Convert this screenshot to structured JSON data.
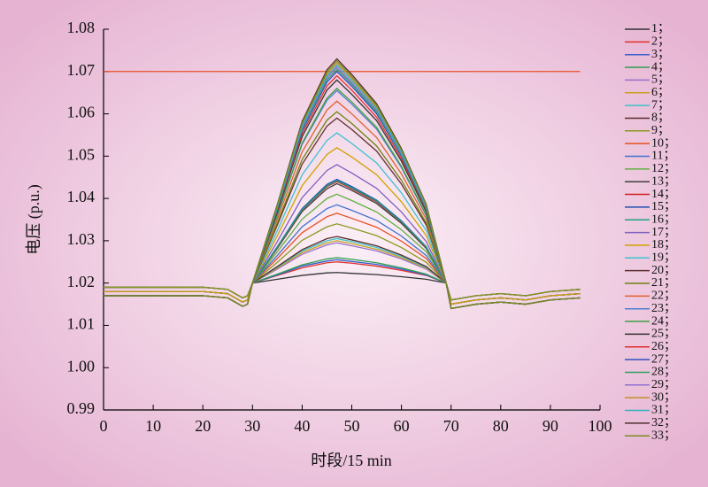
{
  "chart_data": {
    "type": "line",
    "xlabel": "时段/15 min",
    "ylabel": "电压 (p.u.)",
    "xlim": [
      0,
      100
    ],
    "xticks": [
      0,
      10,
      20,
      30,
      40,
      50,
      60,
      70,
      80,
      90,
      100
    ],
    "ylim": [
      0.99,
      1.08
    ],
    "yticks": [
      0.99,
      {
        "value": 1,
        "label": "1.00"
      },
      1.01,
      1.02,
      1.03,
      1.04,
      1.05,
      1.06,
      1.07,
      1.08
    ],
    "reference_line": {
      "y": 1.07,
      "x": [
        0,
        96
      ],
      "color": "#e8502a"
    },
    "x": [
      0,
      10,
      20,
      25,
      28,
      29,
      30,
      35,
      40,
      45,
      47,
      50,
      55,
      60,
      65,
      69,
      70,
      75,
      80,
      85,
      90,
      96
    ],
    "series": [
      {
        "name": "1；",
        "color": "#333333",
        "values": [
          1.019,
          1.019,
          1.019,
          1.0185,
          1.0165,
          1.017,
          1.02,
          1.0209,
          1.0218,
          1.0224,
          1.0225,
          1.0223,
          1.022,
          1.0215,
          1.0209,
          1.02,
          1.016,
          1.017,
          1.0175,
          1.017,
          1.018,
          1.0185
        ]
      },
      {
        "name": "2；",
        "color": "#e0302a",
        "values": [
          1.019,
          1.019,
          1.019,
          1.0185,
          1.0165,
          1.017,
          1.02,
          1.0218,
          1.0236,
          1.0248,
          1.025,
          1.0247,
          1.024,
          1.023,
          1.0218,
          1.02,
          1.016,
          1.017,
          1.0175,
          1.017,
          1.018,
          1.0185
        ]
      },
      {
        "name": "3；",
        "color": "#3a5fcd",
        "values": [
          1.019,
          1.019,
          1.019,
          1.0185,
          1.0165,
          1.017,
          1.02,
          1.0219,
          1.024,
          1.0252,
          1.0255,
          1.0251,
          1.0244,
          1.0233,
          1.0219,
          1.02,
          1.016,
          1.017,
          1.0175,
          1.017,
          1.018,
          1.0185
        ]
      },
      {
        "name": "4；",
        "color": "#2e9e4f",
        "values": [
          1.019,
          1.019,
          1.019,
          1.0185,
          1.0165,
          1.017,
          1.02,
          1.0221,
          1.0243,
          1.0257,
          1.026,
          1.0256,
          1.0248,
          1.0236,
          1.0221,
          1.02,
          1.016,
          1.017,
          1.0175,
          1.017,
          1.018,
          1.0185
        ]
      },
      {
        "name": "5；",
        "color": "#9a6fd0",
        "values": [
          1.019,
          1.019,
          1.019,
          1.0185,
          1.0165,
          1.017,
          1.02,
          1.0233,
          1.0268,
          1.029,
          1.0295,
          1.0288,
          1.0276,
          1.0257,
          1.0233,
          1.02,
          1.016,
          1.017,
          1.0175,
          1.017,
          1.018,
          1.0185
        ]
      },
      {
        "name": "6；",
        "color": "#c8a020",
        "values": [
          1.019,
          1.019,
          1.019,
          1.0185,
          1.0165,
          1.017,
          1.02,
          1.0235,
          1.0272,
          1.0295,
          1.03,
          1.0293,
          1.028,
          1.026,
          1.0235,
          1.02,
          1.016,
          1.017,
          1.0175,
          1.017,
          1.018,
          1.0185
        ]
      },
      {
        "name": "7；",
        "color": "#3cc0c8",
        "values": [
          1.019,
          1.019,
          1.019,
          1.0185,
          1.0165,
          1.017,
          1.02,
          1.0237,
          1.0276,
          1.03,
          1.0305,
          1.0298,
          1.0284,
          1.0263,
          1.0237,
          1.02,
          1.016,
          1.017,
          1.0175,
          1.017,
          1.018,
          1.0185
        ]
      },
      {
        "name": "8；",
        "color": "#5a2a2a",
        "values": [
          1.019,
          1.019,
          1.019,
          1.0185,
          1.0165,
          1.017,
          1.02,
          1.0239,
          1.0279,
          1.0305,
          1.031,
          1.0302,
          1.0288,
          1.0266,
          1.0239,
          1.02,
          1.016,
          1.017,
          1.0175,
          1.017,
          1.018,
          1.0185
        ]
      },
      {
        "name": "9；",
        "color": "#8a9a20",
        "values": [
          1.019,
          1.019,
          1.019,
          1.0185,
          1.0165,
          1.017,
          1.02,
          1.0249,
          1.0301,
          1.0333,
          1.034,
          1.033,
          1.0312,
          1.0284,
          1.0249,
          1.02,
          1.016,
          1.017,
          1.0175,
          1.017,
          1.018,
          1.0185
        ]
      },
      {
        "name": "10；",
        "color": "#e85020",
        "values": [
          1.018,
          1.018,
          1.018,
          1.0175,
          1.0155,
          1.016,
          1.02,
          1.0258,
          1.0319,
          1.0357,
          1.0365,
          1.0353,
          1.0332,
          1.0299,
          1.0258,
          1.02,
          1.015,
          1.016,
          1.0165,
          1.016,
          1.017,
          1.0175
        ]
      },
      {
        "name": "11；",
        "color": "#4070d0",
        "values": [
          1.018,
          1.018,
          1.018,
          1.0175,
          1.0155,
          1.016,
          1.02,
          1.0265,
          1.0333,
          1.0376,
          1.0385,
          1.0372,
          1.0348,
          1.0311,
          1.0265,
          1.02,
          1.015,
          1.016,
          1.0165,
          1.016,
          1.017,
          1.0175
        ]
      },
      {
        "name": "12；",
        "color": "#60b040",
        "values": [
          1.018,
          1.018,
          1.018,
          1.0175,
          1.0155,
          1.016,
          1.02,
          1.0274,
          1.0351,
          1.04,
          1.041,
          1.0395,
          1.0368,
          1.0326,
          1.0274,
          1.02,
          1.015,
          1.016,
          1.0165,
          1.016,
          1.017,
          1.0175
        ]
      },
      {
        "name": "13；",
        "color": "#404040",
        "values": [
          1.018,
          1.018,
          1.018,
          1.0175,
          1.0155,
          1.016,
          1.02,
          1.0282,
          1.0369,
          1.0423,
          1.0435,
          1.0419,
          1.0388,
          1.0341,
          1.0282,
          1.02,
          1.015,
          1.016,
          1.0165,
          1.016,
          1.017,
          1.0175
        ]
      },
      {
        "name": "14；",
        "color": "#d02020",
        "values": [
          1.018,
          1.018,
          1.018,
          1.0175,
          1.0155,
          1.016,
          1.02,
          1.0284,
          1.0373,
          1.0428,
          1.044,
          1.0423,
          1.0392,
          1.0344,
          1.0284,
          1.02,
          1.015,
          1.016,
          1.0165,
          1.016,
          1.017,
          1.0175
        ]
      },
      {
        "name": "15；",
        "color": "#2050b0",
        "values": [
          1.018,
          1.018,
          1.018,
          1.0175,
          1.0155,
          1.016,
          1.02,
          1.0286,
          1.0376,
          1.0433,
          1.0445,
          1.0428,
          1.0396,
          1.0347,
          1.0286,
          1.02,
          1.015,
          1.016,
          1.0165,
          1.016,
          1.017,
          1.0175
        ]
      },
      {
        "name": "16；",
        "color": "#20a080",
        "values": [
          1.018,
          1.018,
          1.018,
          1.0175,
          1.0155,
          1.016,
          1.02,
          1.0285,
          1.0374,
          1.043,
          1.0442,
          1.0425,
          1.0394,
          1.0345,
          1.0285,
          1.02,
          1.015,
          1.016,
          1.0165,
          1.016,
          1.017,
          1.0175
        ]
      },
      {
        "name": "17；",
        "color": "#8060c0",
        "values": [
          1.018,
          1.018,
          1.018,
          1.0175,
          1.0155,
          1.016,
          1.02,
          1.0298,
          1.0402,
          1.0466,
          1.048,
          1.046,
          1.0424,
          1.0368,
          1.0298,
          1.02,
          1.015,
          1.016,
          1.0165,
          1.016,
          1.017,
          1.0175
        ]
      },
      {
        "name": "18；",
        "color": "#d0a000",
        "values": [
          1.018,
          1.018,
          1.018,
          1.0175,
          1.0155,
          1.016,
          1.02,
          1.0312,
          1.043,
          1.0504,
          1.052,
          1.0498,
          1.0456,
          1.0392,
          1.0312,
          1.02,
          1.015,
          1.016,
          1.0165,
          1.016,
          1.017,
          1.0175
        ]
      },
      {
        "name": "19；",
        "color": "#40c0d0",
        "values": [
          1.017,
          1.017,
          1.017,
          1.0165,
          1.0145,
          1.015,
          1.02,
          1.0324,
          1.0456,
          1.0537,
          1.0555,
          1.053,
          1.0484,
          1.0413,
          1.0324,
          1.02,
          1.014,
          1.015,
          1.0155,
          1.015,
          1.016,
          1.0165
        ]
      },
      {
        "name": "20；",
        "color": "#603030",
        "values": [
          1.017,
          1.017,
          1.017,
          1.0165,
          1.0145,
          1.015,
          1.02,
          1.0337,
          1.0481,
          1.0571,
          1.059,
          1.0563,
          1.0512,
          1.0434,
          1.0337,
          1.02,
          1.014,
          1.015,
          1.0155,
          1.015,
          1.016,
          1.0165
        ]
      },
      {
        "name": "21；",
        "color": "#708010",
        "values": [
          1.017,
          1.017,
          1.017,
          1.0165,
          1.0145,
          1.015,
          1.02,
          1.0342,
          1.0492,
          1.0585,
          1.0605,
          1.0577,
          1.0524,
          1.0443,
          1.0342,
          1.02,
          1.014,
          1.015,
          1.0155,
          1.015,
          1.016,
          1.0165
        ]
      },
      {
        "name": "22；",
        "color": "#e06030",
        "values": [
          1.017,
          1.017,
          1.017,
          1.0165,
          1.0145,
          1.015,
          1.02,
          1.0351,
          1.051,
          1.0609,
          1.063,
          1.06,
          1.0544,
          1.0458,
          1.0351,
          1.02,
          1.014,
          1.015,
          1.0155,
          1.015,
          1.016,
          1.0165
        ]
      },
      {
        "name": "23；",
        "color": "#5080d0",
        "values": [
          1.017,
          1.017,
          1.017,
          1.0165,
          1.0145,
          1.015,
          1.02,
          1.0359,
          1.0528,
          1.0632,
          1.0655,
          1.0623,
          1.0564,
          1.0473,
          1.0359,
          1.02,
          1.014,
          1.015,
          1.0155,
          1.015,
          1.016,
          1.0165
        ]
      },
      {
        "name": "24；",
        "color": "#40a040",
        "values": [
          1.017,
          1.017,
          1.017,
          1.0165,
          1.0145,
          1.015,
          1.02,
          1.0361,
          1.0531,
          1.0637,
          1.066,
          1.0628,
          1.0568,
          1.0476,
          1.0361,
          1.02,
          1.014,
          1.015,
          1.0155,
          1.015,
          1.016,
          1.0165
        ]
      },
      {
        "name": "25；",
        "color": "#303030",
        "values": [
          1.017,
          1.017,
          1.017,
          1.0165,
          1.0145,
          1.015,
          1.02,
          1.0368,
          1.0546,
          1.0656,
          1.068,
          1.0646,
          1.0584,
          1.0488,
          1.0368,
          1.02,
          1.014,
          1.015,
          1.0155,
          1.015,
          1.016,
          1.0165
        ]
      },
      {
        "name": "26；",
        "color": "#e03030",
        "values": [
          1.017,
          1.017,
          1.017,
          1.0165,
          1.0145,
          1.015,
          1.02,
          1.0372,
          1.0553,
          1.0666,
          1.069,
          1.0656,
          1.0592,
          1.0494,
          1.0372,
          1.02,
          1.014,
          1.015,
          1.0155,
          1.015,
          1.016,
          1.0165
        ]
      },
      {
        "name": "27；",
        "color": "#3050c0",
        "values": [
          1.017,
          1.017,
          1.017,
          1.0165,
          1.0145,
          1.015,
          1.02,
          1.0375,
          1.056,
          1.0675,
          1.07,
          1.0665,
          1.06,
          1.05,
          1.0375,
          1.02,
          1.014,
          1.015,
          1.0155,
          1.015,
          1.016,
          1.0165
        ]
      },
      {
        "name": "28；",
        "color": "#30a060",
        "values": [
          1.017,
          1.017,
          1.017,
          1.0165,
          1.0145,
          1.015,
          1.02,
          1.0377,
          1.0564,
          1.068,
          1.0705,
          1.067,
          1.0604,
          1.0503,
          1.0377,
          1.02,
          1.014,
          1.015,
          1.0155,
          1.015,
          1.016,
          1.0165
        ]
      },
      {
        "name": "29；",
        "color": "#9070d0",
        "values": [
          1.017,
          1.017,
          1.017,
          1.0165,
          1.0145,
          1.015,
          1.02,
          1.0379,
          1.0567,
          1.0685,
          1.071,
          1.0674,
          1.0608,
          1.0506,
          1.0379,
          1.02,
          1.014,
          1.015,
          1.0155,
          1.015,
          1.016,
          1.0165
        ]
      },
      {
        "name": "30；",
        "color": "#c09020",
        "values": [
          1.017,
          1.017,
          1.017,
          1.0165,
          1.0145,
          1.015,
          1.02,
          1.0382,
          1.0574,
          1.0694,
          1.072,
          1.0684,
          1.0616,
          1.0512,
          1.0382,
          1.02,
          1.014,
          1.015,
          1.0155,
          1.015,
          1.016,
          1.0165
        ]
      },
      {
        "name": "31；",
        "color": "#30b0c0",
        "values": [
          1.017,
          1.017,
          1.017,
          1.0165,
          1.0145,
          1.015,
          1.02,
          1.038,
          1.0571,
          1.0689,
          1.0715,
          1.0679,
          1.0612,
          1.0509,
          1.038,
          1.02,
          1.014,
          1.015,
          1.0155,
          1.015,
          1.016,
          1.0165
        ]
      },
      {
        "name": "32；",
        "color": "#503030",
        "values": [
          1.017,
          1.017,
          1.017,
          1.0165,
          1.0145,
          1.015,
          1.02,
          1.0386,
          1.0582,
          1.0704,
          1.073,
          1.0693,
          1.0624,
          1.0518,
          1.0386,
          1.02,
          1.014,
          1.015,
          1.0155,
          1.015,
          1.016,
          1.0165
        ]
      },
      {
        "name": "33；",
        "color": "#7a8a20",
        "values": [
          1.017,
          1.017,
          1.017,
          1.0165,
          1.0145,
          1.015,
          1.02,
          1.0384,
          1.0578,
          1.0699,
          1.0725,
          1.0688,
          1.062,
          1.0515,
          1.0384,
          1.02,
          1.014,
          1.015,
          1.0155,
          1.015,
          1.016,
          1.0165
        ]
      }
    ]
  }
}
